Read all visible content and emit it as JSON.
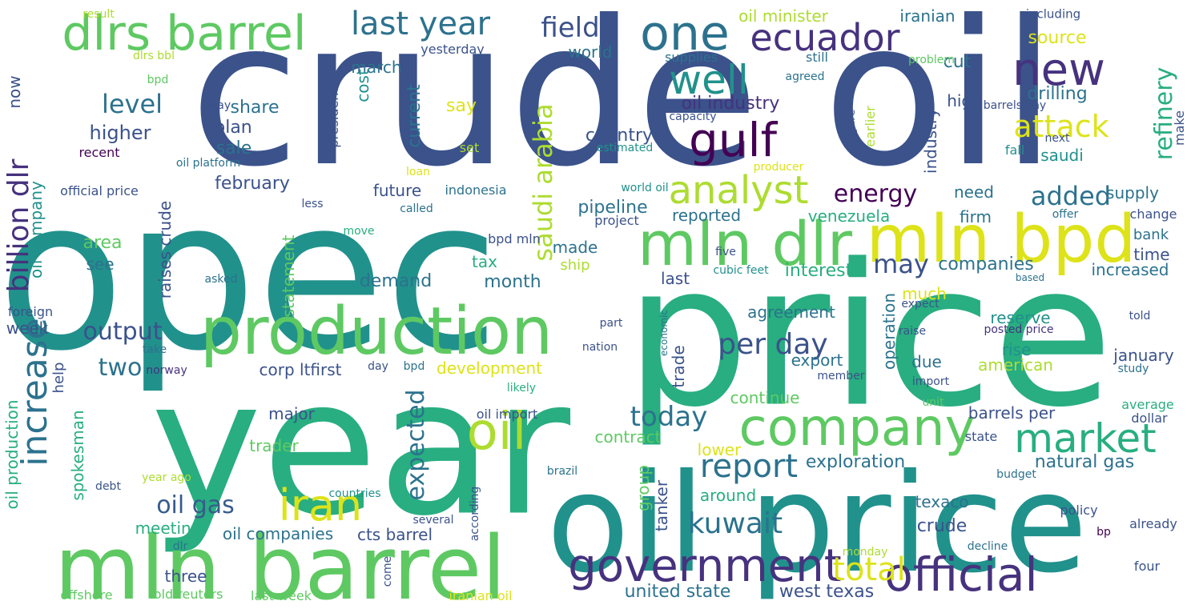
{
  "palette": [
    "#46327e",
    "#3b528b",
    "#365c8d",
    "#2c728e",
    "#21918c",
    "#28ae80",
    "#5ec962",
    "#addc30",
    "#dde318",
    "#440154"
  ],
  "words": [
    {
      "text": "crude oil",
      "color": "#3b528b"
    },
    {
      "text": "opec",
      "color": "#21918c"
    },
    {
      "text": "price",
      "color": "#28ae80"
    },
    {
      "text": "year",
      "color": "#28ae80"
    },
    {
      "text": "oil price",
      "color": "#21918c"
    },
    {
      "text": "mln barrel",
      "color": "#5ec962"
    },
    {
      "text": "production",
      "color": "#5ec962"
    },
    {
      "text": "dlrs barrel",
      "color": "#5ec962"
    },
    {
      "text": "company",
      "color": "#5ec962"
    },
    {
      "text": "mln dlr",
      "color": "#5ec962"
    },
    {
      "text": "mln bpd",
      "color": "#dde318"
    },
    {
      "text": "government",
      "color": "#46327e"
    },
    {
      "text": "official",
      "color": "#46327e"
    },
    {
      "text": "oil",
      "color": "#addc30"
    },
    {
      "text": "iran",
      "color": "#dde318"
    },
    {
      "text": "gulf",
      "color": "#440154"
    },
    {
      "text": "market",
      "color": "#28ae80"
    },
    {
      "text": "ecuador",
      "color": "#46327e"
    },
    {
      "text": "analyst",
      "color": "#addc30"
    },
    {
      "text": "one",
      "color": "#2c728e"
    },
    {
      "text": "well",
      "color": "#21918c"
    },
    {
      "text": "new",
      "color": "#46327e"
    },
    {
      "text": "last year",
      "color": "#2c728e"
    },
    {
      "text": "increase",
      "color": "#2c728e"
    },
    {
      "text": "billion dlr",
      "color": "#46327e"
    },
    {
      "text": "total",
      "color": "#dde318"
    },
    {
      "text": "report",
      "color": "#2c728e"
    },
    {
      "text": "kuwait",
      "color": "#2c728e"
    },
    {
      "text": "saudi arabia",
      "color": "#addc30"
    },
    {
      "text": "field",
      "color": "#3b528b"
    },
    {
      "text": "energy",
      "color": "#440154"
    },
    {
      "text": "attack",
      "color": "#dde318"
    },
    {
      "text": "added",
      "color": "#2c728e"
    },
    {
      "text": "refinery",
      "color": "#28ae80"
    },
    {
      "text": "today",
      "color": "#2c728e"
    },
    {
      "text": "per day",
      "color": "#3b528b"
    },
    {
      "text": "expected",
      "color": "#2c728e"
    },
    {
      "text": "oil gas",
      "color": "#365c8d"
    },
    {
      "text": "output",
      "color": "#3b528b"
    },
    {
      "text": "two",
      "color": "#2c728e"
    },
    {
      "text": "level",
      "color": "#2c728e"
    },
    {
      "text": "may",
      "color": "#3b528b"
    },
    {
      "text": "united state",
      "color": "#2c728e"
    },
    {
      "text": "west texas",
      "color": "#3b528b"
    },
    {
      "text": "oil industry",
      "color": "#46327e"
    },
    {
      "text": "oil minister",
      "color": "#addc30"
    },
    {
      "text": "iranian",
      "color": "#2c728e"
    },
    {
      "text": "including",
      "color": "#3b528b"
    },
    {
      "text": "source",
      "color": "#dde318"
    },
    {
      "text": "cut",
      "color": "#2c728e"
    },
    {
      "text": "drilling",
      "color": "#2c728e"
    },
    {
      "text": "world",
      "color": "#2c728e"
    },
    {
      "text": "supplies",
      "color": "#2c728e"
    },
    {
      "text": "still",
      "color": "#2c728e"
    },
    {
      "text": "problem",
      "color": "#5ec962"
    },
    {
      "text": "yesterday",
      "color": "#3b528b"
    },
    {
      "text": "march",
      "color": "#2c728e"
    },
    {
      "text": "rate",
      "color": "#3b528b"
    },
    {
      "text": "dlrs bbl",
      "color": "#addc30"
    },
    {
      "text": "result",
      "color": "#addc30"
    },
    {
      "text": "bpd",
      "color": "#5ec962"
    },
    {
      "text": "now",
      "color": "#3b528b"
    },
    {
      "text": "higher",
      "color": "#3b528b"
    },
    {
      "text": "share",
      "color": "#2c728e"
    },
    {
      "text": "plan",
      "color": "#3b528b"
    },
    {
      "text": "sale",
      "color": "#2c728e"
    },
    {
      "text": "way",
      "color": "#3b528b"
    },
    {
      "text": "recent",
      "color": "#440154"
    },
    {
      "text": "oil platform",
      "color": "#2c728e"
    },
    {
      "text": "loan",
      "color": "#dde318"
    },
    {
      "text": "official price",
      "color": "#3b528b"
    },
    {
      "text": "oil company",
      "color": "#21918c"
    },
    {
      "text": "february",
      "color": "#3b528b"
    },
    {
      "text": "future",
      "color": "#3b528b"
    },
    {
      "text": "indonesia",
      "color": "#2c728e"
    },
    {
      "text": "less",
      "color": "#3b528b"
    },
    {
      "text": "called",
      "color": "#2c728e"
    },
    {
      "text": "area",
      "color": "#5ec962"
    },
    {
      "text": "see",
      "color": "#2c728e"
    },
    {
      "text": "tax",
      "color": "#28ae80"
    },
    {
      "text": "month",
      "color": "#2c728e"
    },
    {
      "text": "demand",
      "color": "#2c728e"
    },
    {
      "text": "raises crude",
      "color": "#3b528b"
    },
    {
      "text": "statement",
      "color": "#5ec962"
    },
    {
      "text": "cost",
      "color": "#21918c"
    },
    {
      "text": "president",
      "color": "#3b528b"
    },
    {
      "text": "current",
      "color": "#2c728e"
    },
    {
      "text": "say",
      "color": "#dde318"
    },
    {
      "text": "set",
      "color": "#addc30"
    },
    {
      "text": "country",
      "color": "#3b528b"
    },
    {
      "text": "capacity",
      "color": "#3b528b"
    },
    {
      "text": "estimated",
      "color": "#21918c"
    },
    {
      "text": "pipeline",
      "color": "#2c728e"
    },
    {
      "text": "world oil",
      "color": "#21918c"
    },
    {
      "text": "project",
      "color": "#3b528b"
    },
    {
      "text": "reported",
      "color": "#2c728e"
    },
    {
      "text": "venezuela",
      "color": "#28ae80"
    },
    {
      "text": "made",
      "color": "#2c728e"
    },
    {
      "text": "ship",
      "color": "#addc30"
    },
    {
      "text": "bpd mln",
      "color": "#3b528b"
    },
    {
      "text": "move",
      "color": "#28ae80"
    },
    {
      "text": "asked",
      "color": "#2c728e"
    },
    {
      "text": "industry",
      "color": "#3b528b"
    },
    {
      "text": "high",
      "color": "#3b528b"
    },
    {
      "text": "barrels day",
      "color": "#3b528b"
    },
    {
      "text": "figure",
      "color": "#3b528b"
    },
    {
      "text": "next",
      "color": "#3b528b"
    },
    {
      "text": "earlier",
      "color": "#addc30"
    },
    {
      "text": "agreed",
      "color": "#2c728e"
    },
    {
      "text": "make",
      "color": "#3b528b"
    },
    {
      "text": "saudi",
      "color": "#21918c"
    },
    {
      "text": "fall",
      "color": "#21918c"
    },
    {
      "text": "producer",
      "color": "#dde318"
    },
    {
      "text": "need",
      "color": "#2c728e"
    },
    {
      "text": "supply",
      "color": "#2c728e"
    },
    {
      "text": "offer",
      "color": "#2c728e"
    },
    {
      "text": "change",
      "color": "#3b528b"
    },
    {
      "text": "firm",
      "color": "#2c728e"
    },
    {
      "text": "bank",
      "color": "#2c728e"
    },
    {
      "text": "time",
      "color": "#3b528b"
    },
    {
      "text": "increased",
      "color": "#2c728e"
    },
    {
      "text": "five",
      "color": "#3b528b"
    },
    {
      "text": "cubic feet",
      "color": "#21918c"
    },
    {
      "text": "interest",
      "color": "#28ae80"
    },
    {
      "text": "companies",
      "color": "#2c728e"
    },
    {
      "text": "based",
      "color": "#2c728e"
    },
    {
      "text": "last",
      "color": "#3b528b"
    },
    {
      "text": "much",
      "color": "#dde318"
    },
    {
      "text": "operation",
      "color": "#2c728e"
    },
    {
      "text": "expect",
      "color": "#3b528b"
    },
    {
      "text": "agreement",
      "color": "#2c728e"
    },
    {
      "text": "reserve",
      "color": "#21918c"
    },
    {
      "text": "raise",
      "color": "#3b528b"
    },
    {
      "text": "posted price",
      "color": "#46327e"
    },
    {
      "text": "told",
      "color": "#3b528b"
    },
    {
      "text": "part",
      "color": "#3b528b"
    },
    {
      "text": "nation",
      "color": "#3b528b"
    },
    {
      "text": "economic",
      "color": "#2c728e"
    },
    {
      "text": "rise",
      "color": "#21918c"
    },
    {
      "text": "january",
      "color": "#3b528b"
    },
    {
      "text": "american",
      "color": "#addc30"
    },
    {
      "text": "due",
      "color": "#2c728e"
    },
    {
      "text": "export",
      "color": "#2c728e"
    },
    {
      "text": "trade",
      "color": "#3b528b"
    },
    {
      "text": "member",
      "color": "#3b528b"
    },
    {
      "text": "study",
      "color": "#2c728e"
    },
    {
      "text": "import",
      "color": "#3b528b"
    },
    {
      "text": "corp ltfirst",
      "color": "#3b528b"
    },
    {
      "text": "development",
      "color": "#dde318"
    },
    {
      "text": "day",
      "color": "#3b528b"
    },
    {
      "text": "bpd",
      "color": "#2c728e"
    },
    {
      "text": "likely",
      "color": "#28ae80"
    },
    {
      "text": "continue",
      "color": "#5ec962"
    },
    {
      "text": "week",
      "color": "#3b528b"
    },
    {
      "text": "help",
      "color": "#3b528b"
    },
    {
      "text": "take",
      "color": "#2c728e"
    },
    {
      "text": "norway",
      "color": "#46327e"
    },
    {
      "text": "oil production",
      "color": "#28ae80"
    },
    {
      "text": "spokesman",
      "color": "#28ae80"
    },
    {
      "text": "major",
      "color": "#3b528b"
    },
    {
      "text": "oil import",
      "color": "#3b528b"
    },
    {
      "text": "trader",
      "color": "#5ec962"
    },
    {
      "text": "contract",
      "color": "#5ec962"
    },
    {
      "text": "lower",
      "color": "#dde318"
    },
    {
      "text": "barrels per",
      "color": "#3b528b"
    },
    {
      "text": "average",
      "color": "#28ae80"
    },
    {
      "text": "dollar",
      "color": "#3b528b"
    },
    {
      "text": "unit",
      "color": "#5ec962"
    },
    {
      "text": "state",
      "color": "#3b528b"
    },
    {
      "text": "exploration",
      "color": "#2c728e"
    },
    {
      "text": "natural gas",
      "color": "#2c728e"
    },
    {
      "text": "group",
      "color": "#5ec962"
    },
    {
      "text": "tanker",
      "color": "#3b528b"
    },
    {
      "text": "around",
      "color": "#28ae80"
    },
    {
      "text": "brazil",
      "color": "#2c728e"
    },
    {
      "text": "year ago",
      "color": "#addc30"
    },
    {
      "text": "debt",
      "color": "#3b528b"
    },
    {
      "text": "budget",
      "color": "#2c728e"
    },
    {
      "text": "texaco",
      "color": "#2c728e"
    },
    {
      "text": "policy",
      "color": "#3b528b"
    },
    {
      "text": "countries",
      "color": "#21918c"
    },
    {
      "text": "meeting",
      "color": "#28ae80"
    },
    {
      "text": "oil companies",
      "color": "#2c728e"
    },
    {
      "text": "cts barrel",
      "color": "#3b528b"
    },
    {
      "text": "according",
      "color": "#3b528b"
    },
    {
      "text": "several",
      "color": "#3b528b"
    },
    {
      "text": "crude",
      "color": "#3b528b"
    },
    {
      "text": "bp",
      "color": "#440154"
    },
    {
      "text": "already",
      "color": "#3b528b"
    },
    {
      "text": "dlr",
      "color": "#2c728e"
    },
    {
      "text": "decline",
      "color": "#2c728e"
    },
    {
      "text": "three",
      "color": "#3b528b"
    },
    {
      "text": "come",
      "color": "#3b528b"
    },
    {
      "text": "monday",
      "color": "#addc30"
    },
    {
      "text": "four",
      "color": "#3b528b"
    },
    {
      "text": "offshore",
      "color": "#5ec962"
    },
    {
      "text": "told reuters",
      "color": "#5ec962"
    },
    {
      "text": "last week",
      "color": "#5ec962"
    },
    {
      "text": "iranian oil",
      "color": "#dde318"
    },
    {
      "text": "foreign",
      "color": "#3b528b"
    }
  ]
}
